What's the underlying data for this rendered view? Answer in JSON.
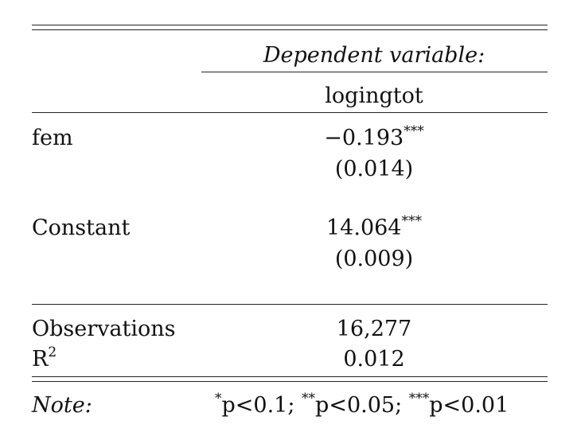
{
  "table": {
    "header": {
      "dependent_variable_label": "Dependent variable:",
      "dependent_variable_name": "logingtot"
    },
    "rows": [
      {
        "label": "fem",
        "coefficient": "−0.193",
        "stars": "***",
        "std_error": "(0.014)"
      },
      {
        "label": "Constant",
        "coefficient": "14.064",
        "stars": "***",
        "std_error": "(0.009)"
      }
    ],
    "stats": [
      {
        "label": "Observations",
        "value": "16,277"
      },
      {
        "label": "R",
        "label_sup": "2",
        "value": "0.012"
      }
    ],
    "note": {
      "label": "Note:",
      "p1_star": "*",
      "p1_text": "p<0.1;",
      "p2_star": "**",
      "p2_text": "p<0.05;",
      "p3_star": "***",
      "p3_text": "p<0.01"
    }
  }
}
